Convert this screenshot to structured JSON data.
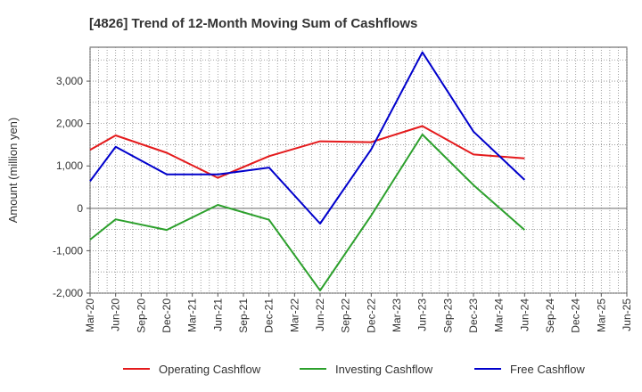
{
  "chart_data": {
    "type": "line",
    "title": "[4826]  Trend of 12-Month Moving Sum of Cashflows",
    "ylabel": "Amount (million yen)",
    "xlabel": "",
    "ylim": [
      -2000,
      3800
    ],
    "yticks": [
      -2000,
      -1000,
      0,
      1000,
      2000,
      3000
    ],
    "ytick_labels": [
      "-2,000",
      "-1,000",
      "0",
      "1,000",
      "2,000",
      "3,000"
    ],
    "categories": [
      "Mar-20",
      "Jun-20",
      "Sep-20",
      "Dec-20",
      "Mar-21",
      "Jun-21",
      "Sep-21",
      "Dec-21",
      "Mar-22",
      "Jun-22",
      "Sep-22",
      "Dec-22",
      "Mar-23",
      "Jun-23",
      "Sep-23",
      "Dec-23",
      "Mar-24",
      "Jun-24",
      "Sep-24",
      "Dec-24",
      "Mar-25",
      "Jun-25"
    ],
    "grid": true,
    "legend_position": "bottom",
    "series": [
      {
        "name": "Operating Cashflow",
        "color": "#e41a1c",
        "points": [
          [
            "Mar-20",
            1380
          ],
          [
            "Jun-20",
            1720
          ],
          [
            "Dec-20",
            1310
          ],
          [
            "Jun-21",
            720
          ],
          [
            "Dec-21",
            1230
          ],
          [
            "Jun-22",
            1580
          ],
          [
            "Dec-22",
            1560
          ],
          [
            "Jun-23",
            1940
          ],
          [
            "Dec-23",
            1270
          ],
          [
            "Jun-24",
            1180
          ]
        ]
      },
      {
        "name": "Investing Cashflow",
        "color": "#2ca02c",
        "points": [
          [
            "Mar-20",
            -740
          ],
          [
            "Jun-20",
            -260
          ],
          [
            "Dec-20",
            -510
          ],
          [
            "Jun-21",
            80
          ],
          [
            "Dec-21",
            -270
          ],
          [
            "Jun-22",
            -1940
          ],
          [
            "Dec-22",
            -170
          ],
          [
            "Jun-23",
            1740
          ],
          [
            "Dec-23",
            550
          ],
          [
            "Jun-24",
            -510
          ]
        ]
      },
      {
        "name": "Free Cashflow",
        "color": "#0000cc",
        "points": [
          [
            "Mar-20",
            640
          ],
          [
            "Jun-20",
            1450
          ],
          [
            "Dec-20",
            800
          ],
          [
            "Jun-21",
            800
          ],
          [
            "Dec-21",
            960
          ],
          [
            "Jun-22",
            -360
          ],
          [
            "Dec-22",
            1390
          ],
          [
            "Jun-23",
            3680
          ],
          [
            "Dec-23",
            1810
          ],
          [
            "Jun-24",
            670
          ]
        ]
      }
    ]
  }
}
